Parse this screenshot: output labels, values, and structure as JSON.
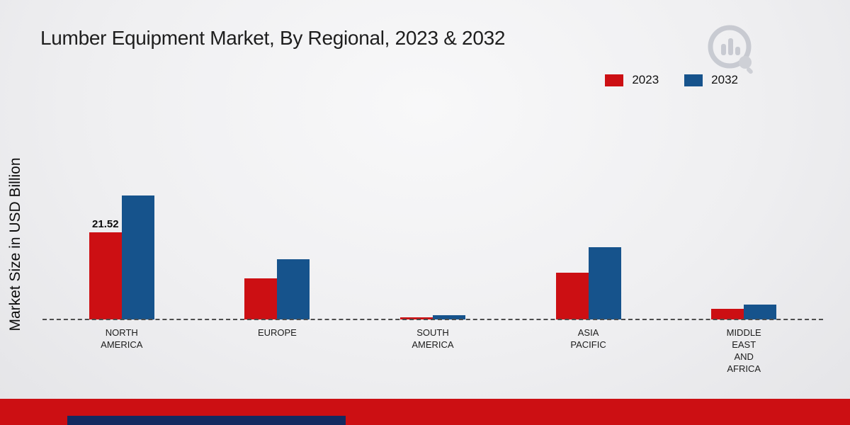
{
  "page": {
    "title": "Lumber Equipment Market, By Regional, 2023 & 2032",
    "y_axis_label": "Market Size in USD Billion"
  },
  "legend": [
    {
      "label": "2023",
      "color": "#cc0f13"
    },
    {
      "label": "2032",
      "color": "#16538c"
    }
  ],
  "chart_data": {
    "type": "bar",
    "title": "Lumber Equipment Market, By Regional, 2023 & 2032",
    "xlabel": "",
    "ylabel": "Market Size in USD Billion",
    "categories": [
      "NORTH AMERICA",
      "EUROPE",
      "SOUTH AMERICA",
      "ASIA PACIFIC",
      "MIDDLE EAST AND AFRICA"
    ],
    "category_lines": [
      [
        "NORTH",
        "AMERICA"
      ],
      [
        "EUROPE"
      ],
      [
        "SOUTH",
        "AMERICA"
      ],
      [
        "ASIA",
        "PACIFIC"
      ],
      [
        "MIDDLE",
        "EAST",
        "AND",
        "AFRICA"
      ]
    ],
    "series": [
      {
        "name": "2023",
        "color": "#cc0f13",
        "values": [
          21.52,
          10.2,
          0.6,
          11.6,
          2.6
        ],
        "data_labels": [
          "21.52",
          "",
          "",
          "",
          ""
        ]
      },
      {
        "name": "2032",
        "color": "#16538c",
        "values": [
          30.7,
          14.9,
          1.0,
          17.8,
          3.6
        ],
        "data_labels": [
          "",
          "",
          "",
          "",
          ""
        ]
      }
    ],
    "ylim": [
      0,
      35
    ],
    "grid": false,
    "baseline_style": "dashed",
    "legend_position": "top-right"
  },
  "logo": {
    "name": "market-research-logo"
  },
  "footer": {
    "bar_color": "#cc0f13",
    "accent_color": "#132a60"
  }
}
